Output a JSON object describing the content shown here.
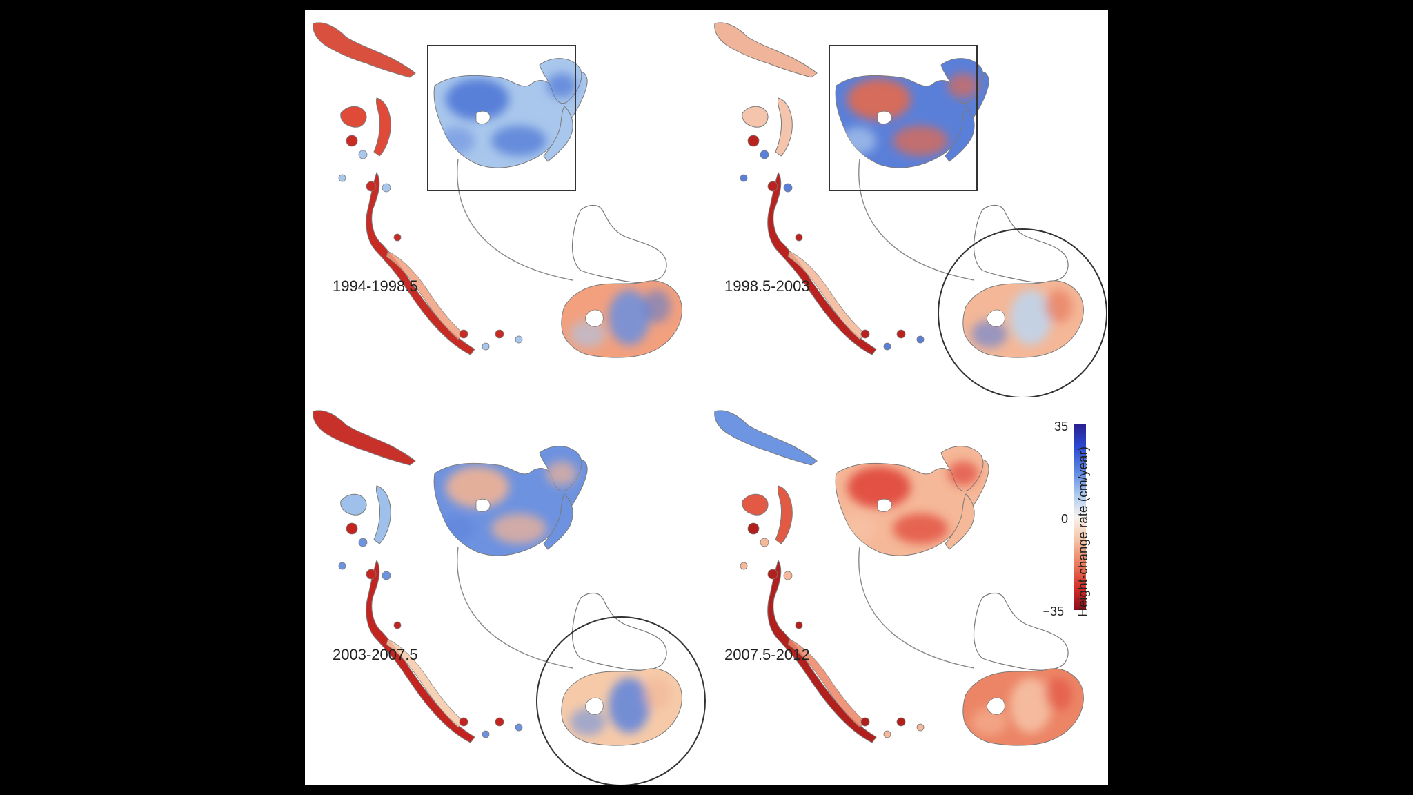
{
  "panels": [
    {
      "label": "1994-1998.5",
      "highlight": "peninsula",
      "tone": {
        "north": "#d9503f",
        "west": "#e04a38",
        "chain": "#c82a24",
        "plateau": "#4f78d6",
        "plateau2": "#a9c7ec",
        "south": "#f2a07e",
        "south2": "#6a8fe0"
      }
    },
    {
      "label": "1998.5-2003",
      "highlight": "peninsula-and-southern",
      "tone": {
        "north": "#f0b49a",
        "west": "#f4c4ad",
        "chain": "#b9221f",
        "plateau": "#e36a4e",
        "plateau2": "#5a7fd9",
        "south": "#f4b797",
        "south2": "#bcd6f0"
      }
    },
    {
      "label": "2003-2007.5",
      "highlight": "southern",
      "tone": {
        "north": "#c8302a",
        "west": "#9fc0ea",
        "chain": "#c3241f",
        "plateau": "#f1b394",
        "plateau2": "#6d92e0",
        "south": "#f6caa9",
        "south2": "#5d84dc"
      }
    },
    {
      "label": "2007.5-2012",
      "highlight": "none",
      "tone": {
        "north": "#6e95e2",
        "west": "#e35a44",
        "chain": "#b2201d",
        "plateau": "#e0473a",
        "plateau2": "#f5b898",
        "south": "#ec8566",
        "south2": "#f7c4a8"
      }
    }
  ],
  "colorbar": {
    "max_label": "35",
    "mid_label": "0",
    "min_label": "−35",
    "title": "Height-change rate (cm/year)",
    "colors": [
      "#2a1f8f",
      "#2b4ad3",
      "#5a84e3",
      "#a8c8ef",
      "#f7f3ee",
      "#f6c3a5",
      "#ec7d5e",
      "#d7302a",
      "#8c0d1a"
    ]
  },
  "colors": {
    "outline": "#7a7a7a",
    "frame": "#333333",
    "leader": "#8a8a8a"
  }
}
